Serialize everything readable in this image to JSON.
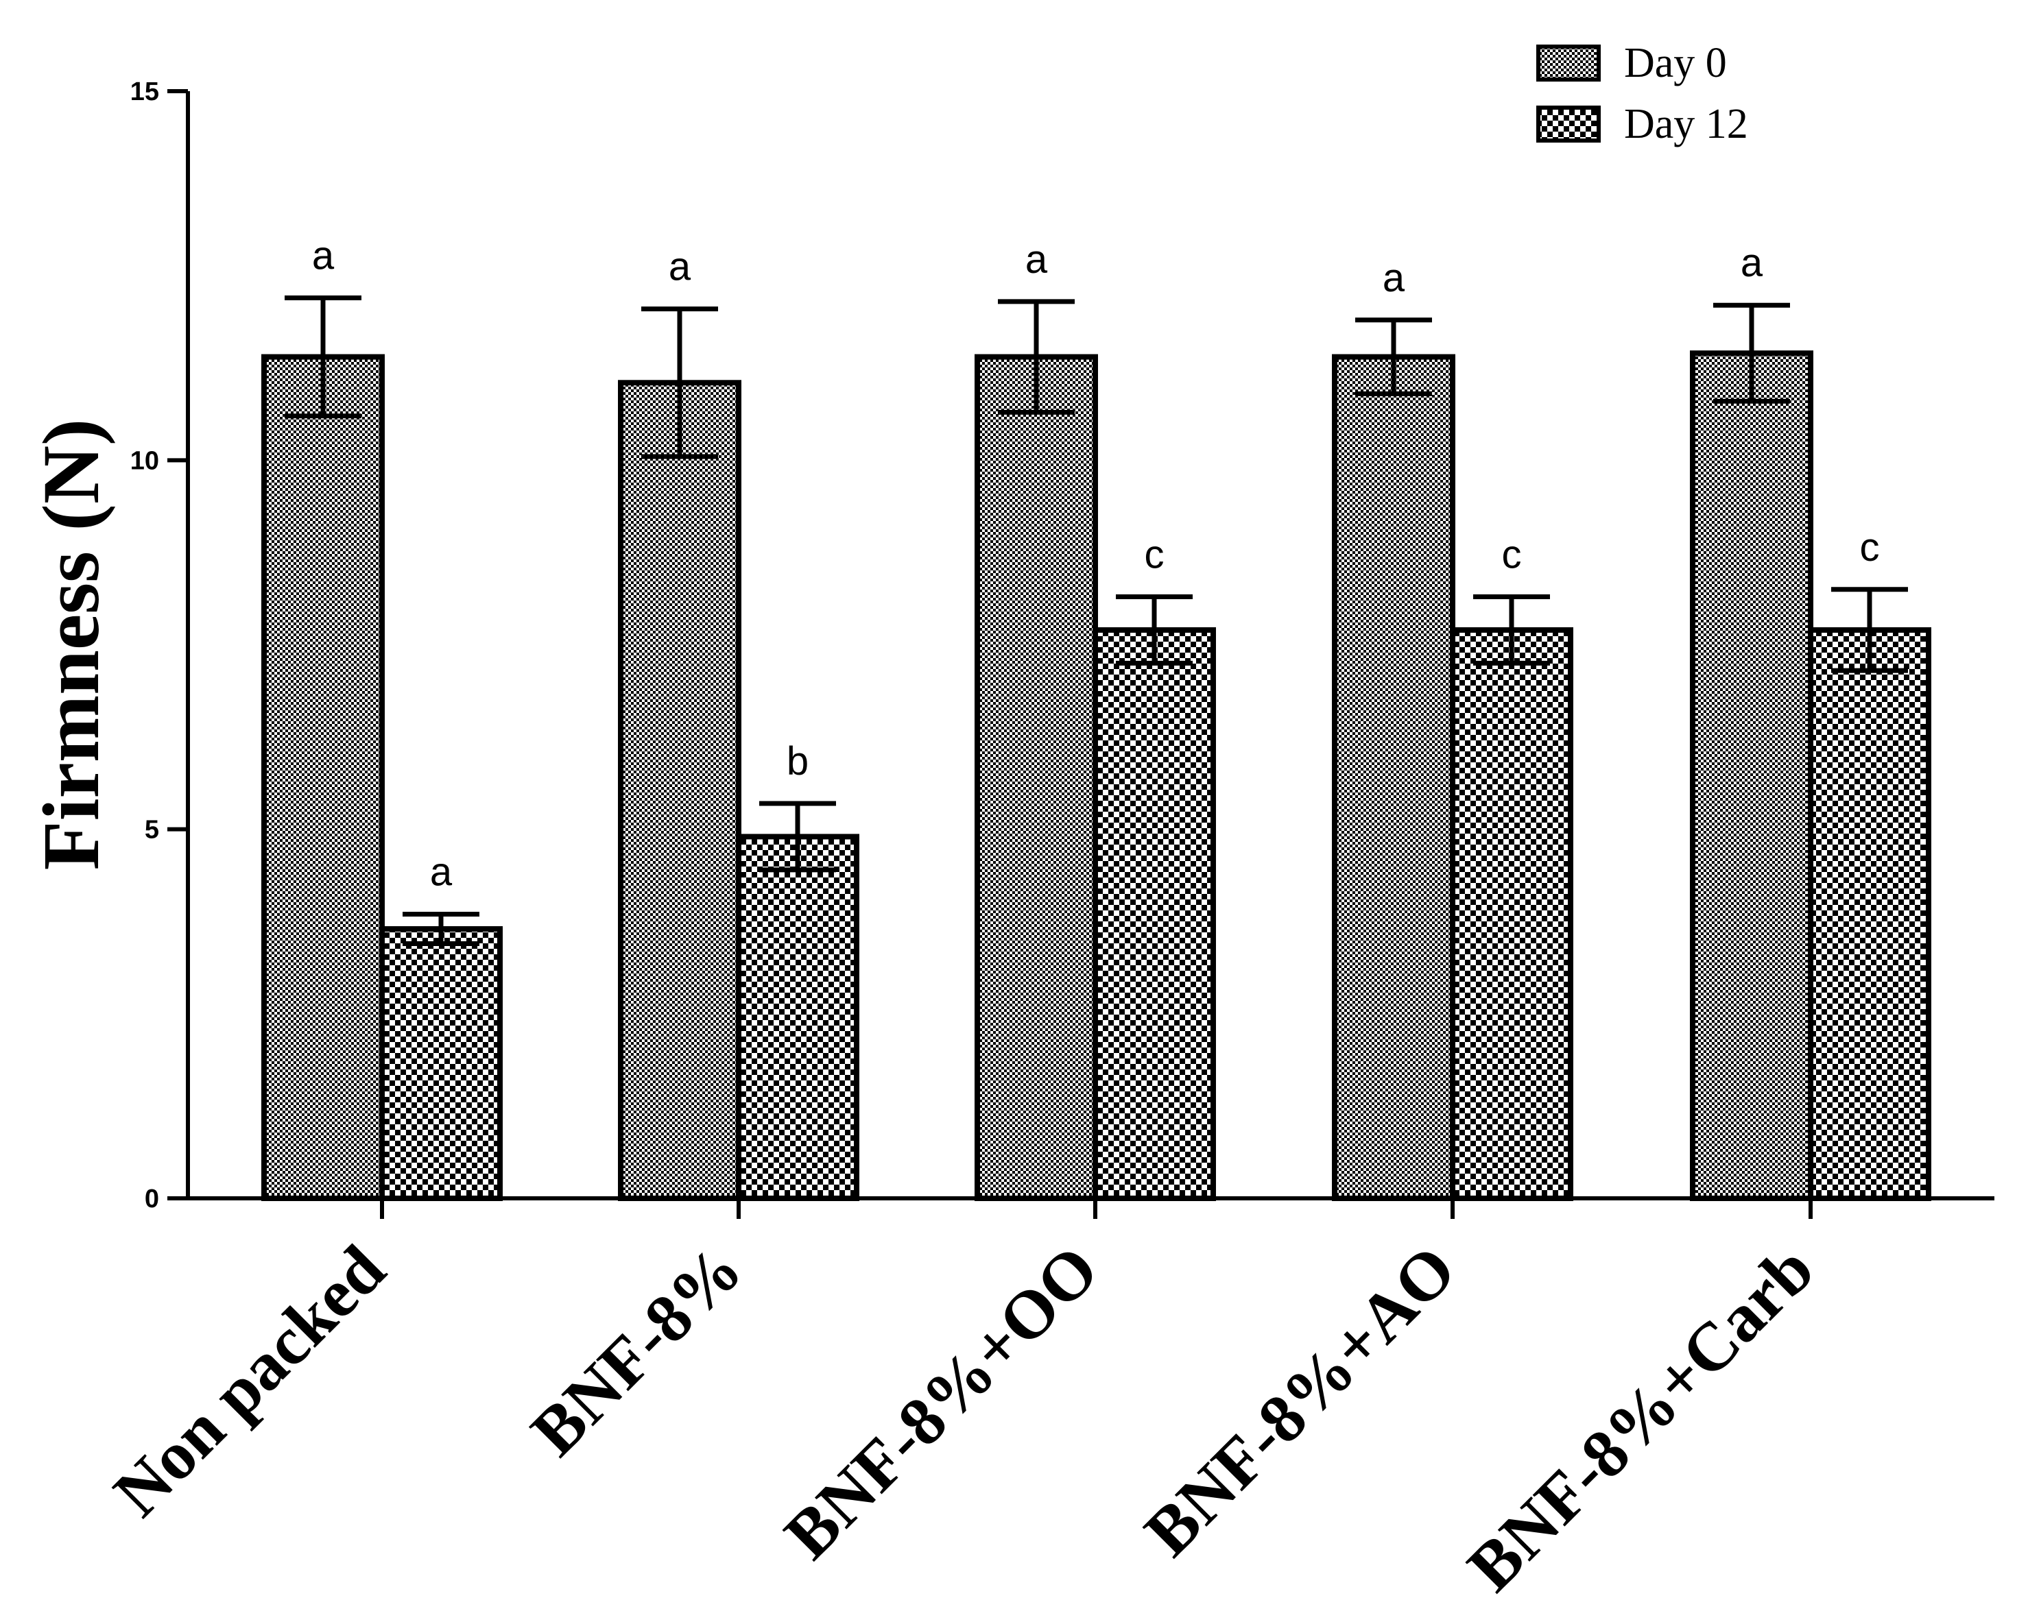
{
  "chart_data": {
    "type": "bar",
    "title": "",
    "xlabel": "",
    "ylabel": "Firmness (N)",
    "ylim": [
      0,
      15
    ],
    "yticks": [
      0,
      5,
      10,
      15
    ],
    "yticks_labels": [
      "0",
      "5",
      "10",
      "15"
    ],
    "grid": false,
    "legend_position": "top-right",
    "categories": [
      "Non packed",
      "BNF-8%",
      "BNF-8%+OO",
      "BNF-8%+AO",
      "BNF-8%+Carb"
    ],
    "series": [
      {
        "name": "Day 0",
        "pattern": "fine-check",
        "values": [
          11.4,
          11.05,
          11.4,
          11.4,
          11.45
        ],
        "errors": [
          0.8,
          1.0,
          0.75,
          0.5,
          0.65
        ],
        "significance": [
          "a",
          "a",
          "a",
          "a",
          "a"
        ]
      },
      {
        "name": "Day 12",
        "pattern": "coarse-check",
        "values": [
          3.65,
          4.9,
          7.7,
          7.7,
          7.7
        ],
        "errors": [
          0.2,
          0.45,
          0.45,
          0.45,
          0.55
        ],
        "significance": [
          "a",
          "b",
          "c",
          "c",
          "c"
        ]
      }
    ]
  }
}
